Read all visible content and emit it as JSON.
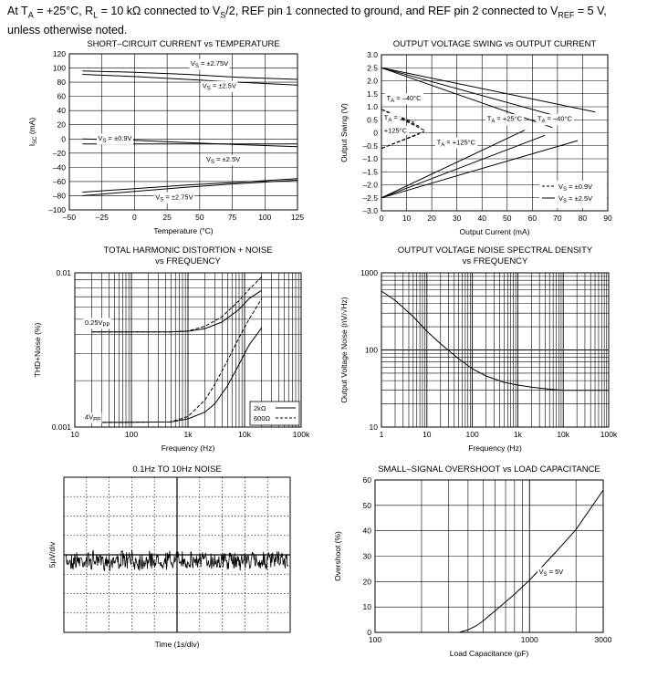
{
  "header": {
    "line1_a": "At T",
    "line1_a_sub": "A",
    "line1_b": " = +25°C, R",
    "line1_b_sub": "L",
    "line1_c": " = 10 kΩ connected to V",
    "line1_c_sub": "S",
    "line1_d": "/2, REF pin 1 connected to ground, and REF pin 2 connected to V",
    "line1_d_sub": "REF",
    "line1_e": " = 5 V,",
    "line2": "unless otherwise noted."
  },
  "chart_data": [
    {
      "id": "isc",
      "type": "line",
      "title": "SHORT–CIRCUIT CURRENT vs TEMPERATURE",
      "xlabel": "Temperature (°C)",
      "ylabel": "I_SC (mA)",
      "xlim": [
        -50,
        125
      ],
      "ylim": [
        -100,
        120
      ],
      "x_ticks": [
        "–50",
        "–25",
        "0",
        "25",
        "50",
        "75",
        "100",
        "125"
      ],
      "y_ticks": [
        "120",
        "100",
        "80",
        "60",
        "40",
        "20",
        "0",
        "–20",
        "–40",
        "–60",
        "–80",
        "–100"
      ],
      "grid": true,
      "series": [
        {
          "name": "V_S = ±2.75V",
          "x": [
            -40,
            0,
            40,
            80,
            125
          ],
          "y": [
            96,
            94,
            91,
            87,
            84
          ]
        },
        {
          "name": "V_S = ±2.5V",
          "x": [
            -40,
            0,
            40,
            80,
            125
          ],
          "y": [
            91,
            88,
            84,
            80,
            76
          ]
        },
        {
          "name": "V_S = ±0.9V",
          "x": [
            -40,
            0,
            40,
            80,
            125
          ],
          "y": [
            -7,
            -7,
            -7,
            -7,
            -7
          ]
        },
        {
          "name": "V_S = ±0.9V",
          "x": [
            -40,
            0,
            40,
            80,
            125
          ],
          "y": [
            0,
            -2,
            -5,
            -8,
            -11
          ]
        },
        {
          "name": "V_S = ±2.5V",
          "x": [
            -40,
            0,
            40,
            80,
            125
          ],
          "y": [
            -75,
            -70,
            -65,
            -61,
            -56
          ]
        },
        {
          "name": "V_S = ±2.75V",
          "x": [
            -40,
            0,
            40,
            80,
            125
          ],
          "y": [
            -80,
            -74,
            -68,
            -63,
            -58
          ]
        }
      ],
      "annotations": [
        {
          "text": "V",
          "sub": "S",
          "rest": " = ±2.75V",
          "x": 43,
          "y": 103
        },
        {
          "text": "V",
          "sub": "S",
          "rest": " = ±2.5V",
          "x": 52,
          "y": 72
        },
        {
          "text": "V",
          "sub": "S",
          "rest": " = ±0.9V",
          "x": -28,
          "y": -2
        },
        {
          "text": "V",
          "sub": "S",
          "rest": " = ±2.5V",
          "x": 55,
          "y": -32
        },
        {
          "text": "V",
          "sub": "S",
          "rest": " = ±2.75V",
          "x": 16,
          "y": -85
        }
      ]
    },
    {
      "id": "swing",
      "type": "line",
      "title": "OUTPUT VOLTAGE SWING vs OUTPUT CURRENT",
      "xlabel": "Output Current (mA)",
      "ylabel": "Output Swing (V)",
      "xlim": [
        0,
        90
      ],
      "ylim": [
        -3,
        3
      ],
      "x_ticks": [
        "0",
        "10",
        "20",
        "30",
        "40",
        "50",
        "60",
        "70",
        "80",
        "90"
      ],
      "y_ticks": [
        "3.0",
        "2.5",
        "2.0",
        "1.5",
        "1.0",
        "0.5",
        "0",
        "–0.5",
        "–1.0",
        "–1.5",
        "–2.0",
        "–2.5",
        "–3.0"
      ],
      "grid": true,
      "series": [
        {
          "name": "V_S = ±2.5V",
          "style": "solid",
          "x": [
            0,
            85
          ],
          "y": [
            2.5,
            0.8
          ]
        },
        {
          "name": "V_S = ±2.5V",
          "style": "solid",
          "x": [
            0,
            75
          ],
          "y": [
            2.5,
            0.5
          ]
        },
        {
          "name": "V_S = ±2.5V",
          "style": "solid",
          "x": [
            0,
            68
          ],
          "y": [
            2.5,
            0.2
          ]
        },
        {
          "name": "V_S = ±2.5V",
          "style": "solid",
          "x": [
            0,
            57
          ],
          "y": [
            -2.5,
            0.1
          ]
        },
        {
          "name": "V_S = ±2.5V",
          "style": "solid",
          "x": [
            0,
            65
          ],
          "y": [
            -2.5,
            -0.1
          ]
        },
        {
          "name": "V_S = ±2.5V",
          "style": "solid",
          "x": [
            0,
            78
          ],
          "y": [
            -2.5,
            -0.3
          ]
        },
        {
          "name": "V_S = ±0.9V",
          "style": "dashed",
          "x": [
            0,
            17
          ],
          "y": [
            0.9,
            0.1
          ]
        },
        {
          "name": "V_S = ±0.9V",
          "style": "dashed",
          "x": [
            0,
            15
          ],
          "y": [
            0.9,
            0.25
          ]
        },
        {
          "name": "V_S = ±0.9V",
          "style": "dashed",
          "x": [
            0,
            13
          ],
          "y": [
            0.9,
            0.4
          ]
        },
        {
          "name": "V_S = ±0.9V",
          "style": "dashed",
          "x": [
            0,
            15
          ],
          "y": [
            -0.6,
            -0.05
          ]
        },
        {
          "name": "V_S = ±0.9V",
          "style": "dashed",
          "x": [
            0,
            17
          ],
          "y": [
            -0.6,
            0.05
          ]
        }
      ],
      "annotations": [
        {
          "text": "T",
          "sub": "A",
          "rest": " = –40°C",
          "x": 2,
          "y": 1.25
        },
        {
          "text": "T",
          "sub": "A",
          "rest": " =",
          "x": 1,
          "y": 0.5
        },
        {
          "text": "+125°C",
          "x": 1,
          "y": 0.0
        },
        {
          "text": "T",
          "sub": "A",
          "rest": " = +125°C",
          "x": 22,
          "y": -0.45
        },
        {
          "text": "T",
          "sub": "A",
          "rest": " = +25°C",
          "x": 42,
          "y": 0.45
        },
        {
          "text": "T",
          "sub": "A",
          "rest": " = –40°C",
          "x": 62,
          "y": 0.45
        }
      ],
      "legend": [
        {
          "label": "V",
          "sub": "S",
          "rest": " = ±0.9V",
          "style": "dashed"
        },
        {
          "label": "V",
          "sub": "S",
          "rest": " = ±2.5V",
          "style": "solid"
        }
      ],
      "legend_position": "bottom-right"
    },
    {
      "id": "thd",
      "type": "line",
      "title": "TOTAL HARMONIC DISTORTION + NOISE",
      "subtitle": "vs FREQUENCY",
      "xlabel": "Frequency (Hz)",
      "ylabel": "THD+Noise (%)",
      "xscale": "log",
      "yscale": "log",
      "xlim": [
        10,
        100000
      ],
      "ylim": [
        0.001,
        0.01
      ],
      "x_ticks": [
        "10",
        "100",
        "1k",
        "10k",
        "100k"
      ],
      "y_ticks": [
        "0.01",
        "0.001"
      ],
      "grid": true,
      "series": [
        {
          "name": "2kΩ",
          "style": "solid",
          "x": [
            20,
            500,
            1000,
            2000,
            4000,
            8000,
            12000,
            20000
          ],
          "y": [
            0.00414,
            0.00414,
            0.00418,
            0.00435,
            0.0048,
            0.0058,
            0.0068,
            0.0077
          ]
        },
        {
          "name": "600Ω",
          "style": "dashed",
          "x": [
            20,
            500,
            1000,
            2000,
            4000,
            8000,
            12000,
            20000
          ],
          "y": [
            0.00414,
            0.00414,
            0.0042,
            0.0045,
            0.0052,
            0.0066,
            0.0078,
            0.0094
          ]
        },
        {
          "name": "2kΩ",
          "style": "solid",
          "x": [
            20,
            500,
            1000,
            2000,
            3000,
            5000,
            8000,
            12000,
            20000
          ],
          "y": [
            0.00107,
            0.00108,
            0.00113,
            0.00125,
            0.00142,
            0.00185,
            0.00255,
            0.0034,
            0.0044
          ]
        },
        {
          "name": "600Ω",
          "style": "dashed",
          "x": [
            20,
            500,
            1000,
            2000,
            3000,
            5000,
            8000,
            12000,
            20000
          ],
          "y": [
            0.00107,
            0.00108,
            0.00117,
            0.0015,
            0.0019,
            0.0027,
            0.0038,
            0.005,
            0.0068
          ]
        }
      ],
      "annotations": [
        {
          "text": "0.25V",
          "sub": "PP",
          "x": 15,
          "y": 0.0046
        },
        {
          "text": "4V",
          "sub": "PP",
          "x": 15,
          "y": 0.00112
        }
      ],
      "legend": [
        {
          "label": "2kΩ",
          "style": "solid"
        },
        {
          "label": "600Ω",
          "style": "dashed"
        }
      ],
      "legend_position": "bottom-right"
    },
    {
      "id": "noise",
      "type": "line",
      "title": "OUTPUT VOLTAGE NOISE SPECTRAL DENSITY",
      "subtitle": "vs FREQUENCY",
      "xlabel": "Frequency (Hz)",
      "ylabel": "Output Voltage Noise (nV/√Hz)",
      "xscale": "log",
      "yscale": "log",
      "xlim": [
        1,
        100000
      ],
      "ylim": [
        10,
        1000
      ],
      "x_ticks": [
        "1",
        "10",
        "100",
        "1k",
        "10k",
        "100k"
      ],
      "y_ticks": [
        "1000",
        "100",
        "10"
      ],
      "grid": true,
      "series": [
        {
          "name": "",
          "x": [
            1,
            2,
            5,
            10,
            20,
            50,
            100,
            200,
            500,
            1000,
            2000,
            5000,
            10000,
            100000
          ],
          "y": [
            580,
            440,
            270,
            175,
            120,
            77,
            57,
            46,
            38,
            35,
            33,
            31,
            30,
            30
          ]
        }
      ]
    },
    {
      "id": "lowfreq",
      "type": "line",
      "title": "0.1Hz TO 10Hz NOISE",
      "xlabel": "Time (1s/div)",
      "ylabel": "5µV/div",
      "xlim": [
        0,
        10
      ],
      "ylim": [
        -4,
        4
      ],
      "grid": true,
      "series": [
        {
          "name": "",
          "x": [
            0,
            10
          ],
          "y": [
            -0.3,
            -0.3
          ]
        }
      ]
    },
    {
      "id": "overshoot",
      "type": "line",
      "title": "SMALL–SIGNAL OVERSHOOT vs LOAD CAPACITANCE",
      "xlabel": "Load Capacitance (pF)",
      "ylabel": "Overshoot (%)",
      "xscale": "log",
      "xlim": [
        100,
        3000
      ],
      "ylim": [
        0,
        60
      ],
      "x_ticks": [
        "100",
        "1000",
        "3000"
      ],
      "y_ticks": [
        "60",
        "50",
        "40",
        "30",
        "20",
        "10",
        "0"
      ],
      "grid": true,
      "series": [
        {
          "name": "",
          "x": [
            100,
            350,
            400,
            450,
            500,
            600,
            800,
            1000,
            1500,
            2000,
            3000
          ],
          "y": [
            0,
            0,
            1,
            2.5,
            4.5,
            8.5,
            15,
            20.5,
            32,
            40.5,
            56
          ]
        }
      ],
      "annotations": [
        {
          "text": "V",
          "sub": "S",
          "rest": " = 5V",
          "x": 1150,
          "y": 23
        }
      ]
    }
  ]
}
